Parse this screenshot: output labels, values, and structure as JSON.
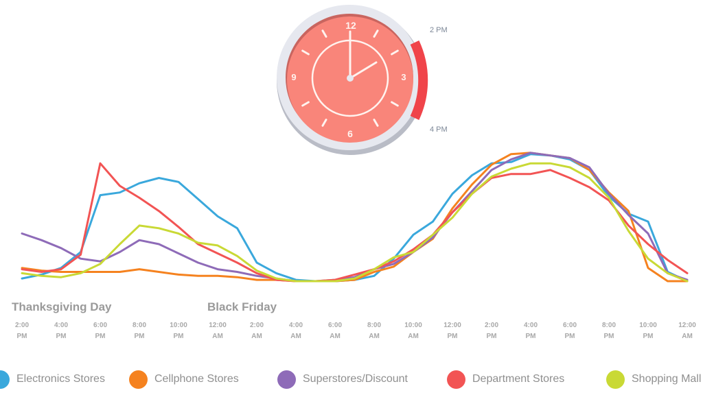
{
  "chart_data": {
    "type": "line",
    "title": "",
    "xlabel": "",
    "ylabel": "",
    "grid": false,
    "legend_position": "bottom",
    "day_labels": [
      {
        "label": "Thanksgiving Day",
        "x_index": 0
      },
      {
        "label": "Black Friday",
        "x_index": 10
      }
    ],
    "x_ticks": [
      {
        "time": "2:00",
        "ampm": "PM"
      },
      {
        "time": "4:00",
        "ampm": "PM"
      },
      {
        "time": "6:00",
        "ampm": "PM"
      },
      {
        "time": "8:00",
        "ampm": "PM"
      },
      {
        "time": "10:00",
        "ampm": "PM"
      },
      {
        "time": "12:00",
        "ampm": "AM"
      },
      {
        "time": "2:00",
        "ampm": "AM"
      },
      {
        "time": "4:00",
        "ampm": "AM"
      },
      {
        "time": "6:00",
        "ampm": "AM"
      },
      {
        "time": "8:00",
        "ampm": "AM"
      },
      {
        "time": "10:00",
        "ampm": "AM"
      },
      {
        "time": "12:00",
        "ampm": "PM"
      },
      {
        "time": "2:00",
        "ampm": "PM"
      },
      {
        "time": "4:00",
        "ampm": "PM"
      },
      {
        "time": "6:00",
        "ampm": "PM"
      },
      {
        "time": "8:00",
        "ampm": "PM"
      },
      {
        "time": "10:00",
        "ampm": "PM"
      },
      {
        "time": "12:00",
        "ampm": "AM"
      }
    ],
    "x_hours_from_start": [
      0,
      1,
      2,
      3,
      4,
      5,
      6,
      7,
      8,
      9,
      10,
      11,
      12,
      13,
      14,
      15,
      16,
      17,
      18,
      19,
      20,
      21,
      22,
      23,
      24,
      25,
      26,
      27,
      28,
      29,
      30,
      31,
      32,
      33,
      34
    ],
    "ylim": [
      0,
      100
    ],
    "series": [
      {
        "name": "Electronics Stores",
        "color": "#3aa8dc",
        "values": [
          2,
          5,
          10,
          22,
          65,
          67,
          74,
          78,
          75,
          62,
          49,
          40,
          14,
          6,
          1,
          0,
          0,
          1,
          4,
          17,
          35,
          45,
          66,
          80,
          89,
          90,
          96,
          95,
          92,
          84,
          64,
          51,
          45,
          7,
          0
        ]
      },
      {
        "name": "Cellphone Stores",
        "color": "#f5821f",
        "values": [
          10,
          8,
          7,
          7,
          7,
          7,
          9,
          7,
          5,
          4,
          4,
          3,
          1,
          1,
          0,
          0,
          0,
          1,
          7,
          11,
          22,
          32,
          55,
          73,
          88,
          96,
          97,
          95,
          93,
          84,
          67,
          53,
          10,
          0,
          0
        ]
      },
      {
        "name": "Superstores/Discount",
        "color": "#8e6bb8",
        "values": [
          36,
          31,
          25,
          17,
          15,
          22,
          31,
          28,
          21,
          14,
          9,
          7,
          4,
          2,
          0,
          0,
          1,
          3,
          9,
          13,
          22,
          33,
          52,
          68,
          84,
          92,
          97,
          95,
          93,
          86,
          66,
          50,
          36,
          6,
          1
        ]
      },
      {
        "name": "Department Stores",
        "color": "#f25454",
        "values": [
          9,
          7,
          9,
          20,
          89,
          72,
          63,
          53,
          41,
          28,
          21,
          14,
          6,
          1,
          0,
          0,
          1,
          5,
          9,
          15,
          24,
          35,
          52,
          66,
          78,
          81,
          81,
          84,
          78,
          71,
          61,
          42,
          28,
          16,
          6
        ]
      },
      {
        "name": "Shopping Mall",
        "color": "#c9d935",
        "values": [
          6,
          4,
          3,
          6,
          13,
          28,
          42,
          40,
          36,
          29,
          27,
          19,
          8,
          2,
          0,
          0,
          0,
          2,
          9,
          18,
          22,
          35,
          48,
          66,
          79,
          85,
          89,
          89,
          86,
          78,
          63,
          38,
          17,
          6,
          0
        ]
      }
    ]
  },
  "clock": {
    "numbers": {
      "twelve": "12",
      "three": "3",
      "six": "6",
      "nine": "9"
    },
    "range_start_label": "2 PM",
    "range_end_label": "4 PM",
    "face_color": "#f9857a",
    "bezel_color": "#e4e7ee",
    "range_color": "#f0444a",
    "hour": 2,
    "minute": 0
  },
  "legend": [
    {
      "label": "Electronics Stores",
      "color": "#3aa8dc"
    },
    {
      "label": "Cellphone Stores",
      "color": "#f5821f"
    },
    {
      "label": "Superstores/Discount",
      "color": "#8e6bb8"
    },
    {
      "label": "Department Stores",
      "color": "#f25454"
    },
    {
      "label": "Shopping Mall",
      "color": "#c9d935"
    }
  ]
}
